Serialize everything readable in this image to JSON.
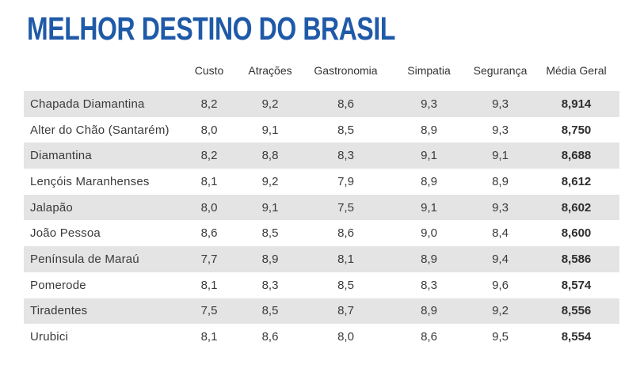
{
  "chart_data": {
    "type": "table",
    "title": "MELHOR DESTINO DO BRASIL",
    "columns": [
      "Custo",
      "Atrações",
      "Gastronomia",
      "Simpatia",
      "Segurança",
      "Média Geral"
    ],
    "rows": [
      {
        "name": "Chapada Diamantina",
        "values": [
          "8,2",
          "9,2",
          "8,6",
          "9,3",
          "9,3",
          "8,914"
        ]
      },
      {
        "name": "Alter do Chão (Santarém)",
        "values": [
          "8,0",
          "9,1",
          "8,5",
          "8,9",
          "9,3",
          "8,750"
        ]
      },
      {
        "name": "Diamantina",
        "values": [
          "8,2",
          "8,8",
          "8,3",
          "9,1",
          "9,1",
          "8,688"
        ]
      },
      {
        "name": "Lençóis Maranhenses",
        "values": [
          "8,1",
          "9,2",
          "7,9",
          "8,9",
          "8,9",
          "8,612"
        ]
      },
      {
        "name": "Jalapão",
        "values": [
          "8,0",
          "9,1",
          "7,5",
          "9,1",
          "9,3",
          "8,602"
        ]
      },
      {
        "name": "João Pessoa",
        "values": [
          "8,6",
          "8,5",
          "8,6",
          "9,0",
          "8,4",
          "8,600"
        ]
      },
      {
        "name": "Península de Maraú",
        "values": [
          "7,7",
          "8,9",
          "8,1",
          "8,9",
          "9,4",
          "8,586"
        ]
      },
      {
        "name": "Pomerode",
        "values": [
          "8,1",
          "8,3",
          "8,5",
          "8,3",
          "9,6",
          "8,574"
        ]
      },
      {
        "name": "Tiradentes",
        "values": [
          "7,5",
          "8,5",
          "8,7",
          "8,9",
          "9,2",
          "8,556"
        ]
      },
      {
        "name": "Urubici",
        "values": [
          "8,1",
          "8,6",
          "8,0",
          "8,6",
          "9,5",
          "8,554"
        ]
      }
    ]
  },
  "colors": {
    "title": "#1f5aa8",
    "row_shade": "#e4e4e4",
    "text": "#3a3a3a"
  }
}
